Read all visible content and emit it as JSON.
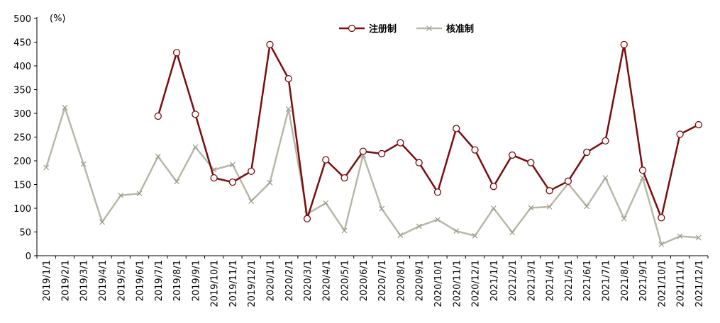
{
  "chart_data": {
    "type": "line",
    "unit_label": "(%)",
    "categories": [
      "2019/1/1",
      "2019/2/1",
      "2019/3/1",
      "2019/4/1",
      "2019/5/1",
      "2019/6/1",
      "2019/7/1",
      "2019/8/1",
      "2019/9/1",
      "2019/10/1",
      "2019/11/1",
      "2019/12/1",
      "2020/1/1",
      "2020/2/1",
      "2020/3/1",
      "2020/4/1",
      "2020/5/1",
      "2020/6/1",
      "2020/7/1",
      "2020/8/1",
      "2020/9/1",
      "2020/10/1",
      "2020/11/1",
      "2020/12/1",
      "2021/1/1",
      "2021/2/1",
      "2021/3/1",
      "2021/4/1",
      "2021/5/1",
      "2021/6/1",
      "2021/7/1",
      "2021/8/1",
      "2021/9/1",
      "2021/10/1",
      "2021/11/1",
      "2021/12/1"
    ],
    "ylim": [
      0,
      500
    ],
    "yticks": [
      0,
      50,
      100,
      150,
      200,
      250,
      300,
      350,
      400,
      450,
      500
    ],
    "legend_position": "top-right",
    "series": [
      {
        "name": "注册制",
        "color": "#7B0C0C",
        "marker": "circle",
        "values": [
          null,
          null,
          null,
          null,
          null,
          null,
          294,
          428,
          298,
          164,
          155,
          178,
          445,
          373,
          78,
          202,
          164,
          220,
          215,
          238,
          196,
          134,
          268,
          223,
          146,
          212,
          196,
          137,
          157,
          218,
          242,
          445,
          180,
          80,
          256,
          276
        ]
      },
      {
        "name": "核准制",
        "color": "#B8B8A8",
        "marker": "x",
        "values": [
          186,
          312,
          193,
          71,
          127,
          131,
          209,
          156,
          229,
          181,
          192,
          115,
          154,
          309,
          88,
          111,
          53,
          212,
          99,
          43,
          62,
          76,
          52,
          42,
          100,
          49,
          101,
          103,
          152,
          104,
          164,
          78,
          164,
          24,
          41,
          38
        ]
      }
    ]
  }
}
